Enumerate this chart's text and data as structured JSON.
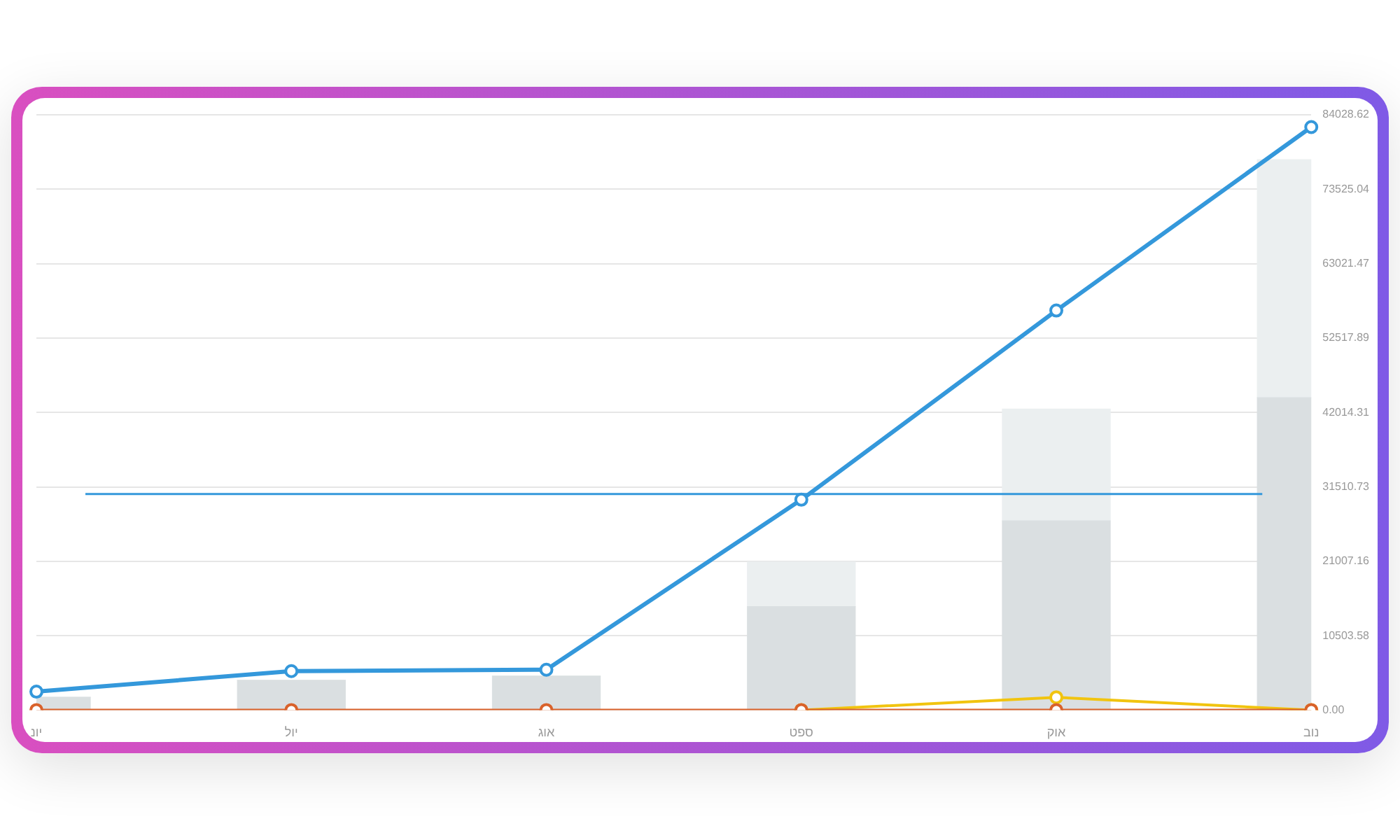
{
  "chart_data": {
    "type": "bar",
    "categories": [
      "יונ",
      "יול",
      "אוג",
      "ספט",
      "אוק",
      "נוב"
    ],
    "stacked": true,
    "grid": "y",
    "legend": false,
    "marker": "circle",
    "ylim": [
      0,
      84028.62
    ],
    "yticks": [
      {
        "value": 0,
        "label": "0.00"
      },
      10503.58,
      21007.16,
      31510.73,
      42014.31,
      52517.89,
      63021.47,
      73525.04,
      84028.62
    ],
    "series": [
      {
        "color": "#dadfe1",
        "values": [
          1800,
          4200,
          4800,
          14600,
          26700,
          44100
        ]
      },
      {
        "color": "#ebeff0",
        "values": [
          0,
          0,
          0,
          6300,
          15800,
          33600
        ]
      },
      {
        "type": "line",
        "color": "#3498db",
        "values": [
          2600,
          5500,
          5700,
          29700,
          56400,
          82300
        ]
      },
      {
        "type": "line",
        "color": "#f1c40f",
        "values": [
          null,
          null,
          null,
          0,
          1800,
          0
        ]
      },
      {
        "type": "line",
        "color": "#d9622b",
        "values": [
          0,
          0,
          0,
          0,
          0,
          0
        ]
      }
    ],
    "ref_lines": [
      {
        "axis": "y",
        "value": 30500,
        "color": "#3498db"
      }
    ]
  }
}
